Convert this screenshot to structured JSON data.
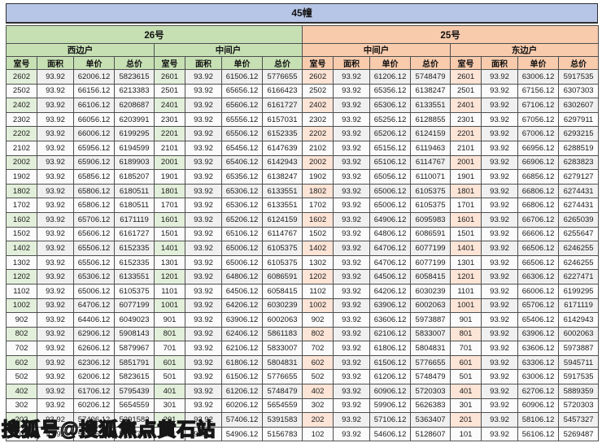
{
  "colors": {
    "header-blue": "#b7c5e6",
    "green": "#c6e0b4",
    "green-light": "#e2efda",
    "orange": "#f8cbad",
    "orange-light": "#fce4d6"
  },
  "watermark": {
    "text": "搜狐号@搜狐焦点黄石站"
  },
  "table": {
    "title": "45幢",
    "groups": [
      {
        "label": "26号",
        "subgroups": [
          {
            "label": "西边户"
          },
          {
            "label": "中间户"
          }
        ]
      },
      {
        "label": "25号",
        "subgroups": [
          {
            "label": "中间户"
          },
          {
            "label": "东边户"
          }
        ]
      }
    ],
    "column_headers": [
      "室号",
      "面积",
      "单价",
      "总价"
    ],
    "sections": [
      {
        "group": "26号",
        "subgroup": "西边户",
        "rows": [
          [
            "2602",
            "93.92",
            "62006.12",
            "5823615"
          ],
          [
            "2502",
            "93.92",
            "66156.12",
            "6213383"
          ],
          [
            "2402",
            "93.92",
            "66106.12",
            "6208687"
          ],
          [
            "2302",
            "93.92",
            "66056.12",
            "6203991"
          ],
          [
            "2202",
            "93.92",
            "66006.12",
            "6199295"
          ],
          [
            "2102",
            "93.92",
            "65956.12",
            "6194599"
          ],
          [
            "2002",
            "93.92",
            "65906.12",
            "6189903"
          ],
          [
            "1902",
            "93.92",
            "65856.12",
            "6185207"
          ],
          [
            "1802",
            "93.92",
            "65806.12",
            "6180511"
          ],
          [
            "1702",
            "93.92",
            "65806.12",
            "6180511"
          ],
          [
            "1602",
            "93.92",
            "65706.12",
            "6171119"
          ],
          [
            "1502",
            "93.92",
            "65606.12",
            "6161727"
          ],
          [
            "1402",
            "93.92",
            "65506.12",
            "6152335"
          ],
          [
            "1302",
            "93.92",
            "65506.12",
            "6152335"
          ],
          [
            "1202",
            "93.92",
            "65306.12",
            "6133551"
          ],
          [
            "1102",
            "93.92",
            "65006.12",
            "6105375"
          ],
          [
            "1002",
            "93.92",
            "64706.12",
            "6077199"
          ],
          [
            "902",
            "93.92",
            "64406.12",
            "6049023"
          ],
          [
            "802",
            "93.92",
            "62906.12",
            "5908143"
          ],
          [
            "702",
            "93.92",
            "62606.12",
            "5879967"
          ],
          [
            "602",
            "93.92",
            "62306.12",
            "5851791"
          ],
          [
            "502",
            "93.92",
            "62006.12",
            "5823615"
          ],
          [
            "402",
            "93.92",
            "61706.12",
            "5795439"
          ],
          [
            "302",
            "93.92",
            "60206.12",
            "5654559"
          ],
          [
            "202",
            "93.92",
            "57406.12",
            "5391583"
          ],
          [
            "102",
            "93.92",
            "55406.12",
            "5203743"
          ]
        ]
      },
      {
        "group": "26号",
        "subgroup": "中间户",
        "rows": [
          [
            "2601",
            "93.92",
            "61506.12",
            "5776655"
          ],
          [
            "2501",
            "93.92",
            "65656.12",
            "6166423"
          ],
          [
            "2401",
            "93.92",
            "65606.12",
            "6161727"
          ],
          [
            "2301",
            "93.92",
            "65556.12",
            "6157031"
          ],
          [
            "2201",
            "93.92",
            "65506.12",
            "6152335"
          ],
          [
            "2101",
            "93.92",
            "65456.12",
            "6147639"
          ],
          [
            "2001",
            "93.92",
            "65406.12",
            "6142943"
          ],
          [
            "1901",
            "93.92",
            "65356.12",
            "6138247"
          ],
          [
            "1801",
            "93.92",
            "65306.12",
            "6133551"
          ],
          [
            "1701",
            "93.92",
            "65306.12",
            "6133551"
          ],
          [
            "1601",
            "93.92",
            "65206.12",
            "6124159"
          ],
          [
            "1501",
            "93.92",
            "65106.12",
            "6114767"
          ],
          [
            "1401",
            "93.92",
            "65006.12",
            "6105375"
          ],
          [
            "1301",
            "93.92",
            "65006.12",
            "6105375"
          ],
          [
            "1201",
            "93.92",
            "64806.12",
            "6086591"
          ],
          [
            "1101",
            "93.92",
            "64506.12",
            "6058415"
          ],
          [
            "1001",
            "93.92",
            "64206.12",
            "6030239"
          ],
          [
            "901",
            "93.92",
            "63906.12",
            "6002063"
          ],
          [
            "801",
            "93.92",
            "62406.12",
            "5861183"
          ],
          [
            "701",
            "93.92",
            "62106.12",
            "5833007"
          ],
          [
            "601",
            "93.92",
            "61806.12",
            "5804831"
          ],
          [
            "501",
            "93.92",
            "61506.12",
            "5776655"
          ],
          [
            "401",
            "93.92",
            "61206.12",
            "5748479"
          ],
          [
            "301",
            "93.92",
            "60206.12",
            "5654559"
          ],
          [
            "201",
            "93.92",
            "57406.12",
            "5391583"
          ],
          [
            "101",
            "93.92",
            "54906.12",
            "5156783"
          ]
        ]
      },
      {
        "group": "25号",
        "subgroup": "中间户",
        "rows": [
          [
            "2602",
            "93.92",
            "61206.12",
            "5748479"
          ],
          [
            "2502",
            "93.92",
            "65356.12",
            "6138247"
          ],
          [
            "2402",
            "93.92",
            "65306.12",
            "6133551"
          ],
          [
            "2302",
            "93.92",
            "65256.12",
            "6128855"
          ],
          [
            "2202",
            "93.92",
            "65206.12",
            "6124159"
          ],
          [
            "2102",
            "93.92",
            "65156.12",
            "6119463"
          ],
          [
            "2002",
            "93.92",
            "65106.12",
            "6114767"
          ],
          [
            "1902",
            "93.92",
            "65056.12",
            "6110071"
          ],
          [
            "1802",
            "93.92",
            "65006.12",
            "6105375"
          ],
          [
            "1702",
            "93.92",
            "65006.12",
            "6105375"
          ],
          [
            "1602",
            "93.92",
            "64906.12",
            "6095983"
          ],
          [
            "1502",
            "93.92",
            "64806.12",
            "6086591"
          ],
          [
            "1402",
            "93.92",
            "64706.12",
            "6077199"
          ],
          [
            "1302",
            "93.92",
            "64706.12",
            "6077199"
          ],
          [
            "1202",
            "93.92",
            "64506.12",
            "6058415"
          ],
          [
            "1102",
            "93.92",
            "64206.12",
            "6030239"
          ],
          [
            "1002",
            "93.92",
            "63906.12",
            "6002063"
          ],
          [
            "902",
            "93.92",
            "63606.12",
            "5973887"
          ],
          [
            "802",
            "93.92",
            "62106.12",
            "5833007"
          ],
          [
            "702",
            "93.92",
            "61806.12",
            "5804831"
          ],
          [
            "602",
            "93.92",
            "61506.12",
            "5776655"
          ],
          [
            "502",
            "93.92",
            "61206.12",
            "5748479"
          ],
          [
            "402",
            "93.92",
            "60906.12",
            "5720303"
          ],
          [
            "302",
            "93.92",
            "59906.12",
            "5626383"
          ],
          [
            "202",
            "93.92",
            "57106.12",
            "5363407"
          ],
          [
            "102",
            "93.92",
            "54606.12",
            "5128607"
          ]
        ]
      },
      {
        "group": "25号",
        "subgroup": "东边户",
        "rows": [
          [
            "2601",
            "93.92",
            "63006.12",
            "5917535"
          ],
          [
            "2501",
            "93.92",
            "67156.12",
            "6307303"
          ],
          [
            "2401",
            "93.92",
            "67106.12",
            "6302607"
          ],
          [
            "2301",
            "93.92",
            "67056.12",
            "6297911"
          ],
          [
            "2201",
            "93.92",
            "67006.12",
            "6293215"
          ],
          [
            "2101",
            "93.92",
            "66956.12",
            "6288519"
          ],
          [
            "2001",
            "93.92",
            "66906.12",
            "6283823"
          ],
          [
            "1901",
            "93.92",
            "66856.12",
            "6279127"
          ],
          [
            "1801",
            "93.92",
            "66806.12",
            "6274431"
          ],
          [
            "1701",
            "93.92",
            "66806.12",
            "6274431"
          ],
          [
            "1601",
            "93.92",
            "66706.12",
            "6265039"
          ],
          [
            "1501",
            "93.92",
            "66606.12",
            "6255647"
          ],
          [
            "1401",
            "93.92",
            "66506.12",
            "6246255"
          ],
          [
            "1301",
            "93.92",
            "66506.12",
            "6246255"
          ],
          [
            "1201",
            "93.92",
            "66306.12",
            "6227471"
          ],
          [
            "1101",
            "93.92",
            "66006.12",
            "6199295"
          ],
          [
            "1001",
            "93.92",
            "65706.12",
            "6171119"
          ],
          [
            "901",
            "93.92",
            "65406.12",
            "6142943"
          ],
          [
            "801",
            "93.92",
            "63906.12",
            "6002063"
          ],
          [
            "701",
            "93.92",
            "63606.12",
            "5973887"
          ],
          [
            "601",
            "93.92",
            "63306.12",
            "5945711"
          ],
          [
            "501",
            "93.92",
            "63006.12",
            "5917535"
          ],
          [
            "401",
            "93.92",
            "62706.12",
            "5889359"
          ],
          [
            "301",
            "93.92",
            "60906.12",
            "5720303"
          ],
          [
            "201",
            "93.92",
            "58106.12",
            "5457327"
          ],
          [
            "101",
            "93.92",
            "56106.12",
            "5269487"
          ]
        ]
      }
    ]
  }
}
